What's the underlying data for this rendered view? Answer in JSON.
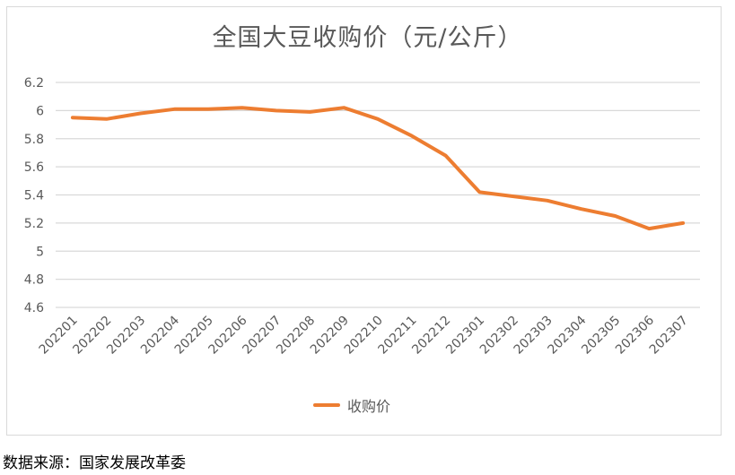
{
  "chart": {
    "title": "全国大豆收购价（元/公斤）",
    "legend_label": "收购价",
    "line_color": "#ed7d31",
    "grid_color": "#d9d9d9"
  },
  "footer": {
    "source": "数据来源：国家发展改革委"
  },
  "chart_data": {
    "type": "line",
    "title": "全国大豆收购价（元/公斤）",
    "xlabel": "",
    "ylabel": "",
    "categories": [
      "202201",
      "202202",
      "202203",
      "202204",
      "202205",
      "202206",
      "202207",
      "202208",
      "202209",
      "202210",
      "202211",
      "202212",
      "202301",
      "202302",
      "202303",
      "202304",
      "202305",
      "202306",
      "202307"
    ],
    "series": [
      {
        "name": "收购价",
        "color": "#ed7d31",
        "values": [
          5.95,
          5.94,
          5.98,
          6.01,
          6.01,
          6.02,
          6.0,
          5.99,
          6.02,
          5.94,
          5.82,
          5.68,
          5.42,
          5.39,
          5.36,
          5.3,
          5.25,
          5.16,
          5.2
        ]
      }
    ],
    "yticks": [
      "6.2",
      "6",
      "5.8",
      "5.6",
      "5.4",
      "5.2",
      "5",
      "4.8",
      "4.6"
    ],
    "ylim": [
      4.6,
      6.2
    ],
    "grid": true,
    "legend_position": "bottom"
  }
}
